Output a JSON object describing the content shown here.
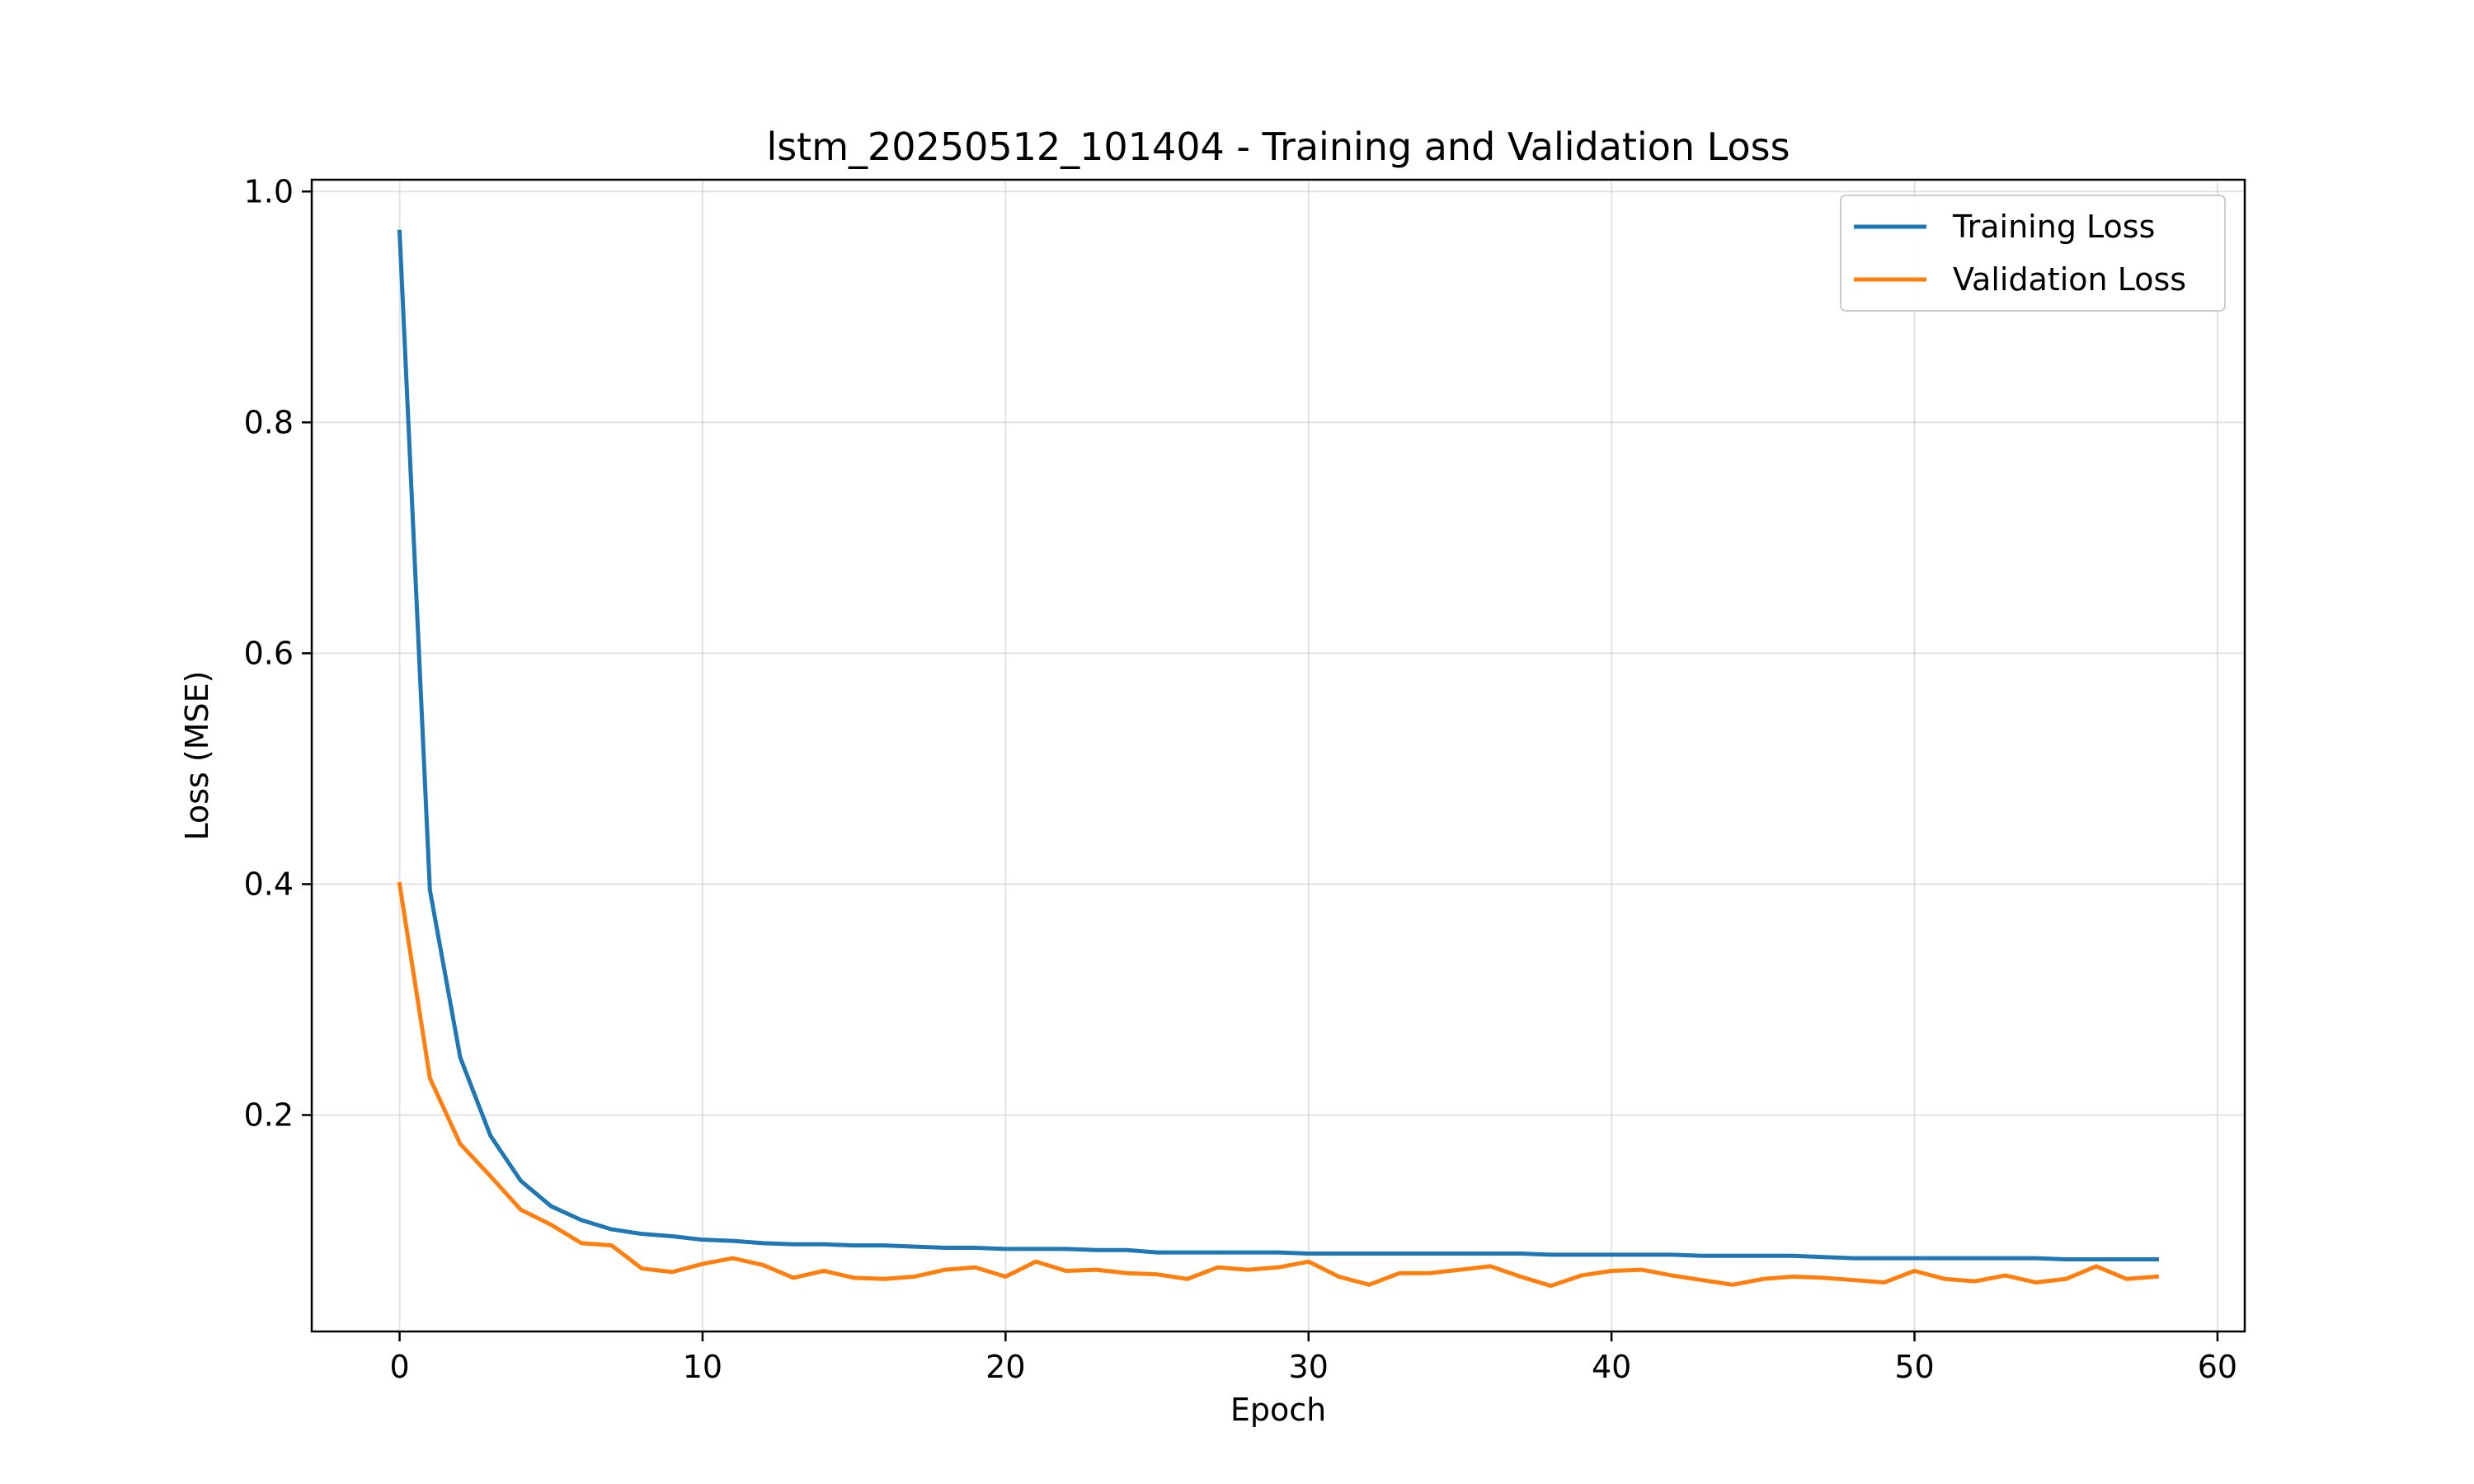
{
  "chart_data": {
    "type": "line",
    "title": "lstm_20250512_101404 - Training and Validation Loss",
    "xlabel": "Epoch",
    "ylabel": "Loss (MSE)",
    "xlim": [
      -2.9,
      60.9
    ],
    "ylim": [
      0.0125,
      1.0102
    ],
    "xticks": [
      0,
      10,
      20,
      30,
      40,
      50,
      60
    ],
    "xtick_labels": [
      "0",
      "10",
      "20",
      "30",
      "40",
      "50",
      "60"
    ],
    "yticks": [
      0.2,
      0.4,
      0.6,
      0.8,
      1.0
    ],
    "ytick_labels": [
      "0.2",
      "0.4",
      "0.6",
      "0.8",
      "1.0"
    ],
    "grid": true,
    "legend_position": "top-right",
    "x": [
      0,
      1,
      2,
      3,
      4,
      5,
      6,
      7,
      8,
      9,
      10,
      11,
      12,
      13,
      14,
      15,
      16,
      17,
      18,
      19,
      20,
      21,
      22,
      23,
      24,
      25,
      26,
      27,
      28,
      29,
      30,
      31,
      32,
      33,
      34,
      35,
      36,
      37,
      38,
      39,
      40,
      41,
      42,
      43,
      44,
      45,
      46,
      47,
      48,
      49,
      50,
      51,
      52,
      53,
      54,
      55,
      56,
      57,
      58
    ],
    "series": [
      {
        "name": "Training Loss",
        "color": "#1f77b4",
        "values": [
          0.965,
          0.395,
          0.25,
          0.182,
          0.143,
          0.121,
          0.109,
          0.101,
          0.097,
          0.095,
          0.092,
          0.091,
          0.089,
          0.088,
          0.088,
          0.087,
          0.087,
          0.086,
          0.085,
          0.085,
          0.084,
          0.084,
          0.084,
          0.083,
          0.083,
          0.081,
          0.081,
          0.081,
          0.081,
          0.081,
          0.08,
          0.08,
          0.08,
          0.08,
          0.08,
          0.08,
          0.08,
          0.08,
          0.079,
          0.079,
          0.079,
          0.079,
          0.079,
          0.078,
          0.078,
          0.078,
          0.078,
          0.077,
          0.076,
          0.076,
          0.076,
          0.076,
          0.076,
          0.076,
          0.076,
          0.075,
          0.075,
          0.075,
          0.075
        ]
      },
      {
        "name": "Validation Loss",
        "color": "#ff7f0e",
        "values": [
          0.4,
          0.232,
          0.175,
          0.147,
          0.118,
          0.105,
          0.089,
          0.087,
          0.067,
          0.064,
          0.071,
          0.076,
          0.07,
          0.059,
          0.065,
          0.059,
          0.058,
          0.06,
          0.066,
          0.068,
          0.06,
          0.073,
          0.065,
          0.066,
          0.063,
          0.062,
          0.058,
          0.068,
          0.066,
          0.068,
          0.073,
          0.06,
          0.053,
          0.063,
          0.063,
          0.066,
          0.069,
          0.06,
          0.052,
          0.061,
          0.065,
          0.066,
          0.061,
          0.057,
          0.053,
          0.058,
          0.06,
          0.059,
          0.057,
          0.055,
          0.065,
          0.058,
          0.056,
          0.061,
          0.055,
          0.058,
          0.069,
          0.058,
          0.06
        ]
      }
    ]
  }
}
